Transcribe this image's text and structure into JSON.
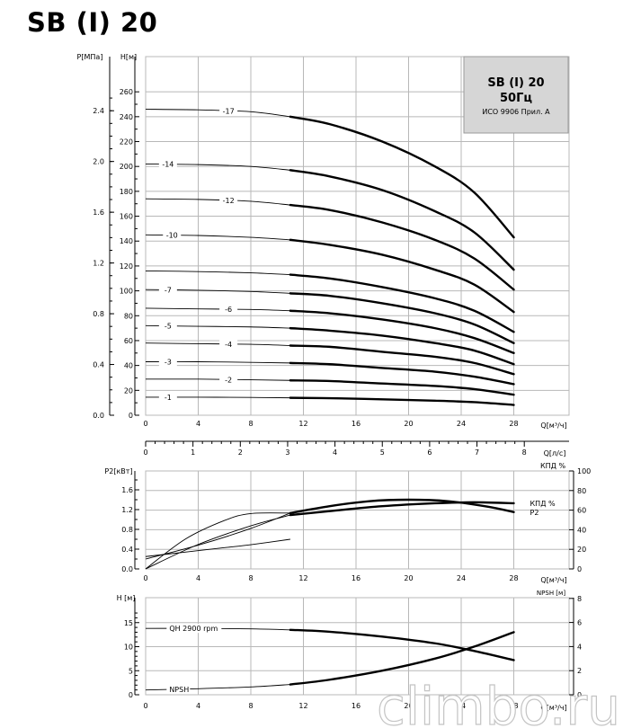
{
  "page": {
    "title": "SB (I) 20",
    "watermark": "climbo.ru"
  },
  "legend_box": {
    "line1": "SB (I) 20",
    "line2": "50Гц",
    "line3": "ИСО 9906 Прил. А"
  },
  "chart_data": [
    {
      "type": "line",
      "name": "head-curves",
      "xlabel": "Q[м³/ч]",
      "xlim": [
        0,
        28
      ],
      "x_ticks": [
        0,
        4,
        8,
        12,
        16,
        20,
        24,
        28
      ],
      "ylabel_left_outer": "P[МПа]",
      "ylabel_left_inner": "H[м]",
      "ylim": [
        0,
        270
      ],
      "y_ticks": [
        0,
        20,
        40,
        60,
        80,
        100,
        120,
        140,
        160,
        180,
        200,
        220,
        240,
        260
      ],
      "p_ticks": [
        {
          "label": "0.0",
          "h": 0
        },
        {
          "label": "0.4",
          "h": 40.8
        },
        {
          "label": "0.8",
          "h": 81.6
        },
        {
          "label": "1.2",
          "h": 122.4
        },
        {
          "label": "1.6",
          "h": 163.2
        },
        {
          "label": "2.0",
          "h": 204
        },
        {
          "label": "2.4",
          "h": 244.8
        }
      ],
      "secondary_x": {
        "label": "Q[л/с]",
        "ticks": [
          0,
          1,
          2,
          3,
          4,
          5,
          6,
          7,
          8
        ],
        "ratio_m3h_per_ls": 3.6
      },
      "grid": true,
      "series": [
        {
          "name": "-17",
          "label_x": 6.3,
          "points": [
            [
              0,
              246
            ],
            [
              4,
              245.5
            ],
            [
              8,
              244
            ],
            [
              11,
              240
            ],
            [
              14,
              234
            ],
            [
              18,
              220
            ],
            [
              22,
              200
            ],
            [
              25,
              179
            ],
            [
              28,
              143
            ]
          ]
        },
        {
          "name": "-14",
          "label_x": 1.7,
          "points": [
            [
              0,
              202
            ],
            [
              4,
              201.5
            ],
            [
              8,
              200
            ],
            [
              11,
              197
            ],
            [
              14,
              192
            ],
            [
              18,
              181
            ],
            [
              22,
              164
            ],
            [
              25,
              147
            ],
            [
              28,
              117
            ]
          ]
        },
        {
          "name": "-12",
          "label_x": 6.3,
          "points": [
            [
              0,
              174
            ],
            [
              4,
              173.5
            ],
            [
              8,
              172
            ],
            [
              11,
              169
            ],
            [
              14,
              165
            ],
            [
              18,
              155
            ],
            [
              22,
              141
            ],
            [
              25,
              126
            ],
            [
              28,
              101
            ]
          ]
        },
        {
          "name": "-10",
          "label_x": 2.0,
          "points": [
            [
              0,
              145
            ],
            [
              4,
              144.5
            ],
            [
              8,
              143
            ],
            [
              11,
              141
            ],
            [
              14,
              137
            ],
            [
              18,
              129
            ],
            [
              22,
              117
            ],
            [
              25,
              105
            ],
            [
              28,
              83
            ]
          ]
        },
        {
          "name": "",
          "label_x": null,
          "points": [
            [
              0,
              116
            ],
            [
              4,
              115.5
            ],
            [
              8,
              114.5
            ],
            [
              11,
              113
            ],
            [
              14,
              110
            ],
            [
              18,
              103
            ],
            [
              22,
              94
            ],
            [
              25,
              84
            ],
            [
              28,
              67
            ]
          ]
        },
        {
          "name": "-7",
          "label_x": 1.7,
          "points": [
            [
              0,
              101
            ],
            [
              4,
              100.5
            ],
            [
              8,
              99.5
            ],
            [
              11,
              98
            ],
            [
              14,
              96
            ],
            [
              18,
              90
            ],
            [
              22,
              82
            ],
            [
              25,
              73
            ],
            [
              28,
              58
            ]
          ]
        },
        {
          "name": "-6",
          "label_x": 6.3,
          "points": [
            [
              0,
              86
            ],
            [
              4,
              85.5
            ],
            [
              8,
              85
            ],
            [
              11,
              84
            ],
            [
              14,
              82
            ],
            [
              18,
              77
            ],
            [
              22,
              70
            ],
            [
              25,
              62
            ],
            [
              28,
              50
            ]
          ]
        },
        {
          "name": "-5",
          "label_x": 1.7,
          "points": [
            [
              0,
              72
            ],
            [
              4,
              71.5
            ],
            [
              8,
              71
            ],
            [
              11,
              70
            ],
            [
              14,
              68
            ],
            [
              18,
              64
            ],
            [
              22,
              58
            ],
            [
              25,
              52
            ],
            [
              28,
              41
            ]
          ]
        },
        {
          "name": "-4",
          "label_x": 6.3,
          "points": [
            [
              0,
              58
            ],
            [
              4,
              57.5
            ],
            [
              8,
              57
            ],
            [
              11,
              56
            ],
            [
              14,
              55
            ],
            [
              18,
              51
            ],
            [
              22,
              47
            ],
            [
              25,
              42
            ],
            [
              28,
              33
            ]
          ]
        },
        {
          "name": "-3",
          "label_x": 1.7,
          "points": [
            [
              0,
              43
            ],
            [
              4,
              43
            ],
            [
              8,
              42.5
            ],
            [
              11,
              42
            ],
            [
              14,
              41
            ],
            [
              18,
              38
            ],
            [
              22,
              35
            ],
            [
              25,
              31
            ],
            [
              28,
              25
            ]
          ]
        },
        {
          "name": "-2",
          "label_x": 6.3,
          "points": [
            [
              0,
              29
            ],
            [
              4,
              29
            ],
            [
              8,
              28.5
            ],
            [
              11,
              28
            ],
            [
              14,
              27.5
            ],
            [
              18,
              25.5
            ],
            [
              22,
              23.5
            ],
            [
              25,
              21
            ],
            [
              28,
              16.5
            ]
          ]
        },
        {
          "name": "-1",
          "label_x": 1.7,
          "points": [
            [
              0,
              14.5
            ],
            [
              4,
              14.5
            ],
            [
              8,
              14.3
            ],
            [
              11,
              14
            ],
            [
              14,
              13.7
            ],
            [
              18,
              12.8
            ],
            [
              22,
              11.7
            ],
            [
              25,
              10.5
            ],
            [
              28,
              8.3
            ]
          ]
        }
      ]
    },
    {
      "type": "line",
      "name": "power-efficiency",
      "xlabel": "Q[м³/ч]",
      "xlim": [
        0,
        28
      ],
      "x_ticks": [
        0,
        4,
        8,
        12,
        16,
        20,
        24,
        28
      ],
      "ylabel_left": "P2[кВт]",
      "ylim_left": [
        0,
        1.8
      ],
      "y_ticks_left": [
        0.0,
        0.4,
        0.8,
        1.2,
        1.6
      ],
      "ylabel_right": "КПД %",
      "ylim_right": [
        0,
        100
      ],
      "y_ticks_right": [
        0,
        20,
        40,
        60,
        80,
        100
      ],
      "grid": true,
      "series": [
        {
          "name": "P2",
          "axis": "left",
          "points": [
            [
              0,
              0.2
            ],
            [
              4,
              0.48
            ],
            [
              8,
              0.82
            ],
            [
              11,
              1.13
            ],
            [
              14,
              1.27
            ],
            [
              17,
              1.37
            ],
            [
              20,
              1.4
            ],
            [
              23,
              1.37
            ],
            [
              26,
              1.26
            ],
            [
              28,
              1.15
            ]
          ]
        },
        {
          "name": "КПД %",
          "axis": "right",
          "points": [
            [
              0,
              0
            ],
            [
              4,
              25
            ],
            [
              8,
              44
            ],
            [
              11,
              55
            ],
            [
              14,
              59
            ],
            [
              18,
              64
            ],
            [
              22,
              67
            ],
            [
              25,
              68
            ],
            [
              28,
              67
            ]
          ]
        },
        {
          "name": "",
          "axis": "left",
          "points": [
            [
              0,
              0.0
            ],
            [
              3,
              0.6
            ],
            [
              6,
              0.98
            ],
            [
              8,
              1.12
            ],
            [
              11,
              1.13
            ]
          ]
        },
        {
          "name": "",
          "axis": "left",
          "points": [
            [
              0,
              0.25
            ],
            [
              3,
              0.34
            ],
            [
              6,
              0.43
            ],
            [
              8,
              0.49
            ],
            [
              11,
              0.6
            ]
          ]
        }
      ]
    },
    {
      "type": "line",
      "name": "head-npsh",
      "xlabel": "Q[м³/ч]",
      "xlim": [
        0,
        28
      ],
      "x_ticks": [
        0,
        4,
        8,
        12,
        16,
        20,
        24,
        28
      ],
      "ylabel_left": "H [м]",
      "ylim_left": [
        0,
        17
      ],
      "y_ticks_left": [
        0,
        5,
        10,
        15
      ],
      "ylabel_right": "NPSH [м]",
      "ylim_right": [
        0,
        8
      ],
      "y_ticks_right": [
        0,
        2,
        4,
        6,
        8
      ],
      "grid": true,
      "series": [
        {
          "name": "QH 2900 rpm",
          "axis": "left",
          "points": [
            [
              0,
              13.8
            ],
            [
              4,
              13.8
            ],
            [
              8,
              13.7
            ],
            [
              11,
              13.5
            ],
            [
              14,
              13.1
            ],
            [
              18,
              12.1
            ],
            [
              22,
              10.7
            ],
            [
              25,
              9.1
            ],
            [
              28,
              7.2
            ]
          ]
        },
        {
          "name": "NPSH",
          "axis": "right",
          "points": [
            [
              0,
              0.4
            ],
            [
              4,
              0.5
            ],
            [
              8,
              0.65
            ],
            [
              11,
              0.85
            ],
            [
              14,
              1.25
            ],
            [
              18,
              2.0
            ],
            [
              22,
              3.0
            ],
            [
              25,
              4.0
            ],
            [
              28,
              5.2
            ]
          ]
        }
      ]
    }
  ]
}
